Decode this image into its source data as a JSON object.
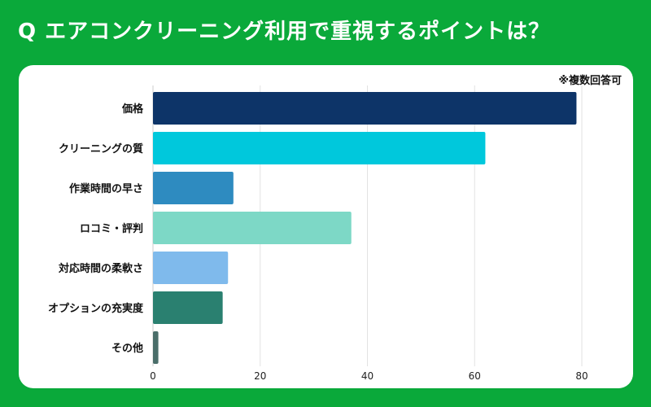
{
  "header": {
    "title": "Q エアコンクリーニング利用で重視するポイントは？",
    "note": "※複数回答可"
  },
  "chart_data": {
    "type": "bar",
    "orientation": "horizontal",
    "title": "Q エアコンクリーニング利用で重視するポイントは？",
    "categories": [
      "価格",
      "クリーニングの質",
      "作業時間の早さ",
      "ロコミ・評判",
      "対応時間の柔軟さ",
      "オプションの充実度",
      "その他"
    ],
    "values": [
      79,
      62,
      15,
      37,
      14,
      13,
      1
    ],
    "colors": [
      "#0d3468",
      "#00c8dc",
      "#2e8bc0",
      "#7dd8c6",
      "#7fbaec",
      "#2a8070",
      "#4a6e6a"
    ],
    "xlim": [
      0,
      82
    ],
    "xticks": [
      0,
      20,
      40,
      60,
      80
    ],
    "grid": true,
    "legend": "none"
  }
}
